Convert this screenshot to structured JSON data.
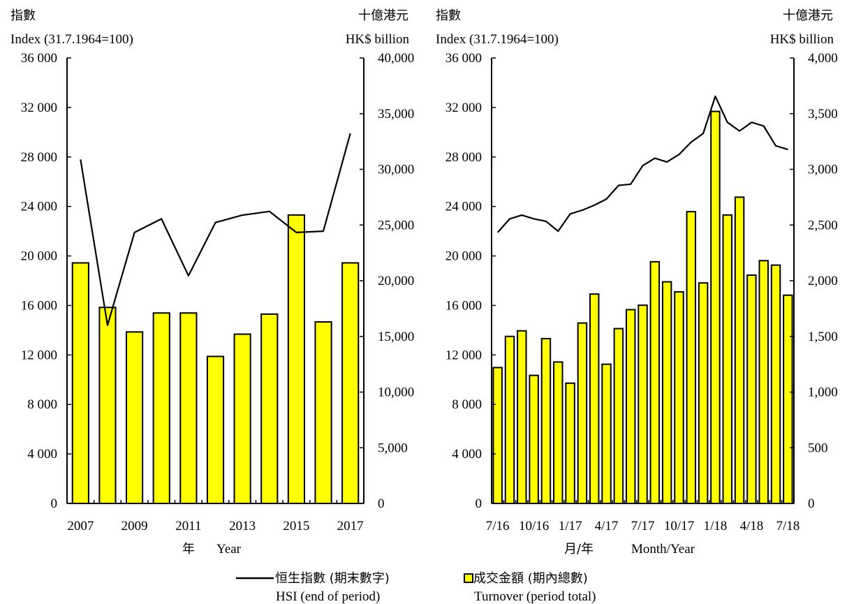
{
  "chart_data": [
    {
      "type": "bar",
      "subtype": "bar-line-dual-axis",
      "left_axis_title_zh": "指數",
      "left_axis_title_en": "Index (31.7.1964=100)",
      "right_axis_title_zh": "十億港元",
      "right_axis_title_en": "HK$ billion",
      "xlabel_zh": "年",
      "xlabel_en": "Year",
      "left_ylim": [
        0,
        36000
      ],
      "right_ylim": [
        0,
        40000
      ],
      "left_ticks": [
        "0",
        "4 000",
        "8 000",
        "12 000",
        "16 000",
        "20 000",
        "24 000",
        "28 000",
        "32 000",
        "36 000"
      ],
      "right_ticks": [
        "0",
        "5,000",
        "10,000",
        "15,000",
        "20,000",
        "25,000",
        "30,000",
        "35,000",
        "40,000"
      ],
      "x_tick_labels": [
        "2007",
        "",
        "2009",
        "",
        "2011",
        "",
        "2013",
        "",
        "2015",
        "",
        "2017"
      ],
      "categories": [
        "2007",
        "2008",
        "2009",
        "2010",
        "2011",
        "2012",
        "2013",
        "2014",
        "2015",
        "2016",
        "2017"
      ],
      "series": [
        {
          "name": "Turnover (period total)",
          "kind": "bar",
          "axis": "right",
          "values": [
            21600,
            17600,
            15400,
            17100,
            17100,
            13200,
            15200,
            17000,
            25900,
            16300,
            21600
          ]
        },
        {
          "name": "HSI (end of period)",
          "kind": "line",
          "axis": "left",
          "values": [
            27800,
            14400,
            21900,
            23000,
            18400,
            22700,
            23300,
            23600,
            21900,
            22000,
            29900
          ]
        }
      ]
    },
    {
      "type": "bar",
      "subtype": "bar-line-dual-axis",
      "left_axis_title_zh": "指數",
      "left_axis_title_en": "Index (31.7.1964=100)",
      "right_axis_title_zh": "十億港元",
      "right_axis_title_en": "HK$ billion",
      "xlabel_zh": "月/年",
      "xlabel_en": "Month/Year",
      "left_ylim": [
        0,
        36000
      ],
      "right_ylim": [
        0,
        4000
      ],
      "left_ticks": [
        "0",
        "4 000",
        "8 000",
        "12 000",
        "16 000",
        "20 000",
        "24 000",
        "28 000",
        "32 000",
        "36 000"
      ],
      "right_ticks": [
        "0",
        "500",
        "1,000",
        "1,500",
        "2,000",
        "2,500",
        "3,000",
        "3,500",
        "4,000"
      ],
      "x_tick_labels": [
        "7/16",
        "",
        "",
        "10/16",
        "",
        "",
        "1/17",
        "",
        "",
        "4/17",
        "",
        "",
        "7/17",
        "",
        "",
        "10/17",
        "",
        "",
        "1/18",
        "",
        "",
        "4/18",
        "",
        "",
        "7/18"
      ],
      "categories": [
        "7/16",
        "8/16",
        "9/16",
        "10/16",
        "11/16",
        "12/16",
        "1/17",
        "2/17",
        "3/17",
        "4/17",
        "5/17",
        "6/17",
        "7/17",
        "8/17",
        "9/17",
        "10/17",
        "11/17",
        "12/17",
        "1/18",
        "2/18",
        "3/18",
        "4/18",
        "5/18",
        "6/18",
        "7/18"
      ],
      "series": [
        {
          "name": "Turnover (period total)",
          "kind": "bar",
          "axis": "right",
          "values": [
            1220,
            1500,
            1550,
            1150,
            1480,
            1270,
            1080,
            1620,
            1880,
            1250,
            1570,
            1740,
            1780,
            2170,
            1990,
            1900,
            2620,
            1980,
            3520,
            2590,
            2750,
            2050,
            2180,
            2140,
            1870
          ]
        },
        {
          "name": "HSI (end of period)",
          "kind": "line",
          "axis": "left",
          "values": [
            21900,
            23000,
            23300,
            23000,
            22800,
            22000,
            23400,
            23700,
            24100,
            24600,
            25700,
            25800,
            27300,
            27900,
            27600,
            28200,
            29200,
            29900,
            32900,
            30800,
            30100,
            30800,
            30500,
            28900,
            28600
          ]
        }
      ]
    }
  ],
  "legend": {
    "hsi_zh": "恒生指數 (期末數字)",
    "hsi_en": "HSI (end of period)",
    "turnover_zh": "成交金額 (期內總數)",
    "turnover_en": "Turnover (period total)"
  },
  "colors": {
    "bar_fill": "#ffff00",
    "bar_stroke": "#000000",
    "line": "#000000",
    "background": "#ffffff"
  }
}
